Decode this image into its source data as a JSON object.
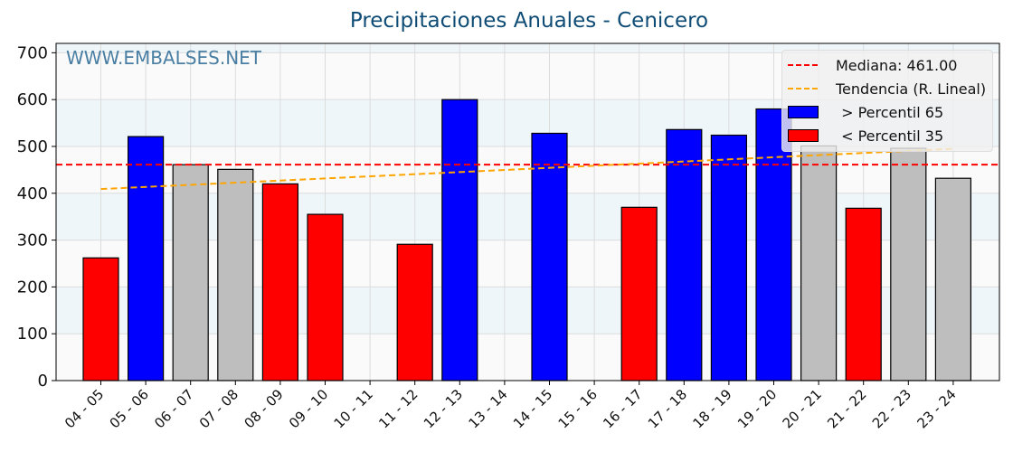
{
  "chart_data": {
    "type": "bar",
    "title": "Precipitaciones Anuales - Cenicero",
    "xlabel": "",
    "ylabel": "",
    "ylim": [
      0,
      720
    ],
    "yticks": [
      0,
      100,
      200,
      300,
      400,
      500,
      600,
      700
    ],
    "grid": true,
    "legend_position": "upper right",
    "watermark": "WWW.EMBALSES.NET",
    "categories": [
      "04 - 05",
      "05 - 06",
      "06 - 07",
      "07 - 08",
      "08 - 09",
      "09 - 10",
      "10 - 11",
      "11 - 12",
      "12 - 13",
      "13 - 14",
      "14 - 15",
      "15 - 16",
      "16 - 17",
      "17 - 18",
      "18 - 19",
      "19 - 20",
      "20 - 21",
      "21 - 22",
      "22 - 23",
      "23 - 24"
    ],
    "values": [
      262,
      521,
      461,
      451,
      420,
      355,
      null,
      291,
      600,
      null,
      528,
      null,
      370,
      536,
      524,
      580,
      501,
      368,
      496,
      432
    ],
    "bar_classes": [
      "low",
      "high",
      "mid",
      "mid",
      "low",
      "low",
      "none",
      "low",
      "high",
      "none",
      "high",
      "none",
      "low",
      "high",
      "high",
      "high",
      "mid",
      "low",
      "mid",
      "mid"
    ],
    "colors": {
      "high": "#0000ff",
      "low": "#ff0000",
      "mid": "#bebebe",
      "median": "#ff0000",
      "trend": "#ffa500"
    },
    "median": 461.0,
    "trend": {
      "start": 409,
      "end": 495
    },
    "legend": [
      {
        "label": "Mediana: 461.00",
        "type": "dashed-line",
        "color": "#ff0000"
      },
      {
        "label": "Tendencia (R. Lineal)",
        "type": "dashed-line",
        "color": "#ffa500"
      },
      {
        "label": " > Percentil 65",
        "type": "box",
        "color": "#0000ff"
      },
      {
        "label": " < Percentil 35",
        "type": "box",
        "color": "#ff0000"
      }
    ]
  }
}
